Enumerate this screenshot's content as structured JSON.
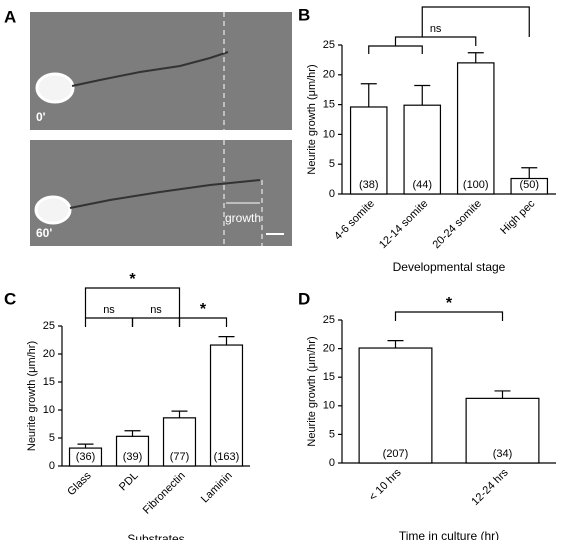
{
  "figure": {
    "panel_label": "A",
    "image_labels": [
      "0'",
      "60'"
    ],
    "growth_label": "growth"
  },
  "chart_data": [
    {
      "type": "bar",
      "panel": "B",
      "ylabel": "Neurite growth (μm/hr)",
      "xlabel": "Developmental stage",
      "categories": [
        "4-6 somite",
        "12-14 somite",
        "20-24 somite",
        "High pec"
      ],
      "values": [
        14.6,
        14.9,
        22,
        2.6
      ],
      "errors": [
        3.9,
        3.3,
        1.7,
        1.8
      ],
      "n_labels": [
        "(38)",
        "(44)",
        "(100)",
        "(50)"
      ],
      "color": "#ffffff",
      "edgecolor": "#000000",
      "ylim": [
        0,
        25
      ],
      "yticks": [
        0,
        5,
        10,
        15,
        20,
        25
      ],
      "annotations": [
        {
          "label": "ns",
          "groups": [
            [
              0,
              1
            ],
            [
              2
            ]
          ]
        },
        {
          "label": "*",
          "groups": [
            [
              0,
              1,
              2
            ],
            [
              3
            ]
          ]
        }
      ]
    },
    {
      "type": "bar",
      "panel": "C",
      "ylabel": "Neurite growth (μm/hr)",
      "xlabel": "Substrates",
      "categories": [
        "Glass",
        "PDL",
        "Fibronectin",
        "Laminin"
      ],
      "values": [
        3.2,
        5.3,
        8.6,
        21.6
      ],
      "errors": [
        0.7,
        1.0,
        1.2,
        1.5
      ],
      "n_labels": [
        "(36)",
        "(39)",
        "(77)",
        "(163)"
      ],
      "color": "#ffffff",
      "edgecolor": "#000000",
      "ylim": [
        0,
        25
      ],
      "yticks": [
        0,
        5,
        10,
        15,
        20,
        25
      ],
      "annotations": [
        {
          "label": "ns",
          "groups": [
            [
              0
            ],
            [
              1
            ]
          ]
        },
        {
          "label": "ns",
          "groups": [
            [
              1
            ],
            [
              2
            ]
          ]
        },
        {
          "label": "*",
          "groups": [
            [
              2
            ],
            [
              3
            ]
          ]
        },
        {
          "label": "*",
          "groups": [
            [
              0
            ],
            [
              2
            ]
          ]
        }
      ]
    },
    {
      "type": "bar",
      "panel": "D",
      "ylabel": "Neurite growth (μm/hr)",
      "xlabel": "Time in culture (hr)",
      "categories": [
        "< 10 hrs",
        "12-24 hrs"
      ],
      "values": [
        20.1,
        11.3
      ],
      "errors": [
        1.3,
        1.3
      ],
      "n_labels": [
        "(207)",
        "(34)"
      ],
      "color": "#ffffff",
      "edgecolor": "#000000",
      "ylim": [
        0,
        25
      ],
      "yticks": [
        0,
        5,
        10,
        15,
        20,
        25
      ],
      "annotations": [
        {
          "label": "*",
          "groups": [
            [
              0
            ],
            [
              1
            ]
          ]
        }
      ]
    }
  ]
}
